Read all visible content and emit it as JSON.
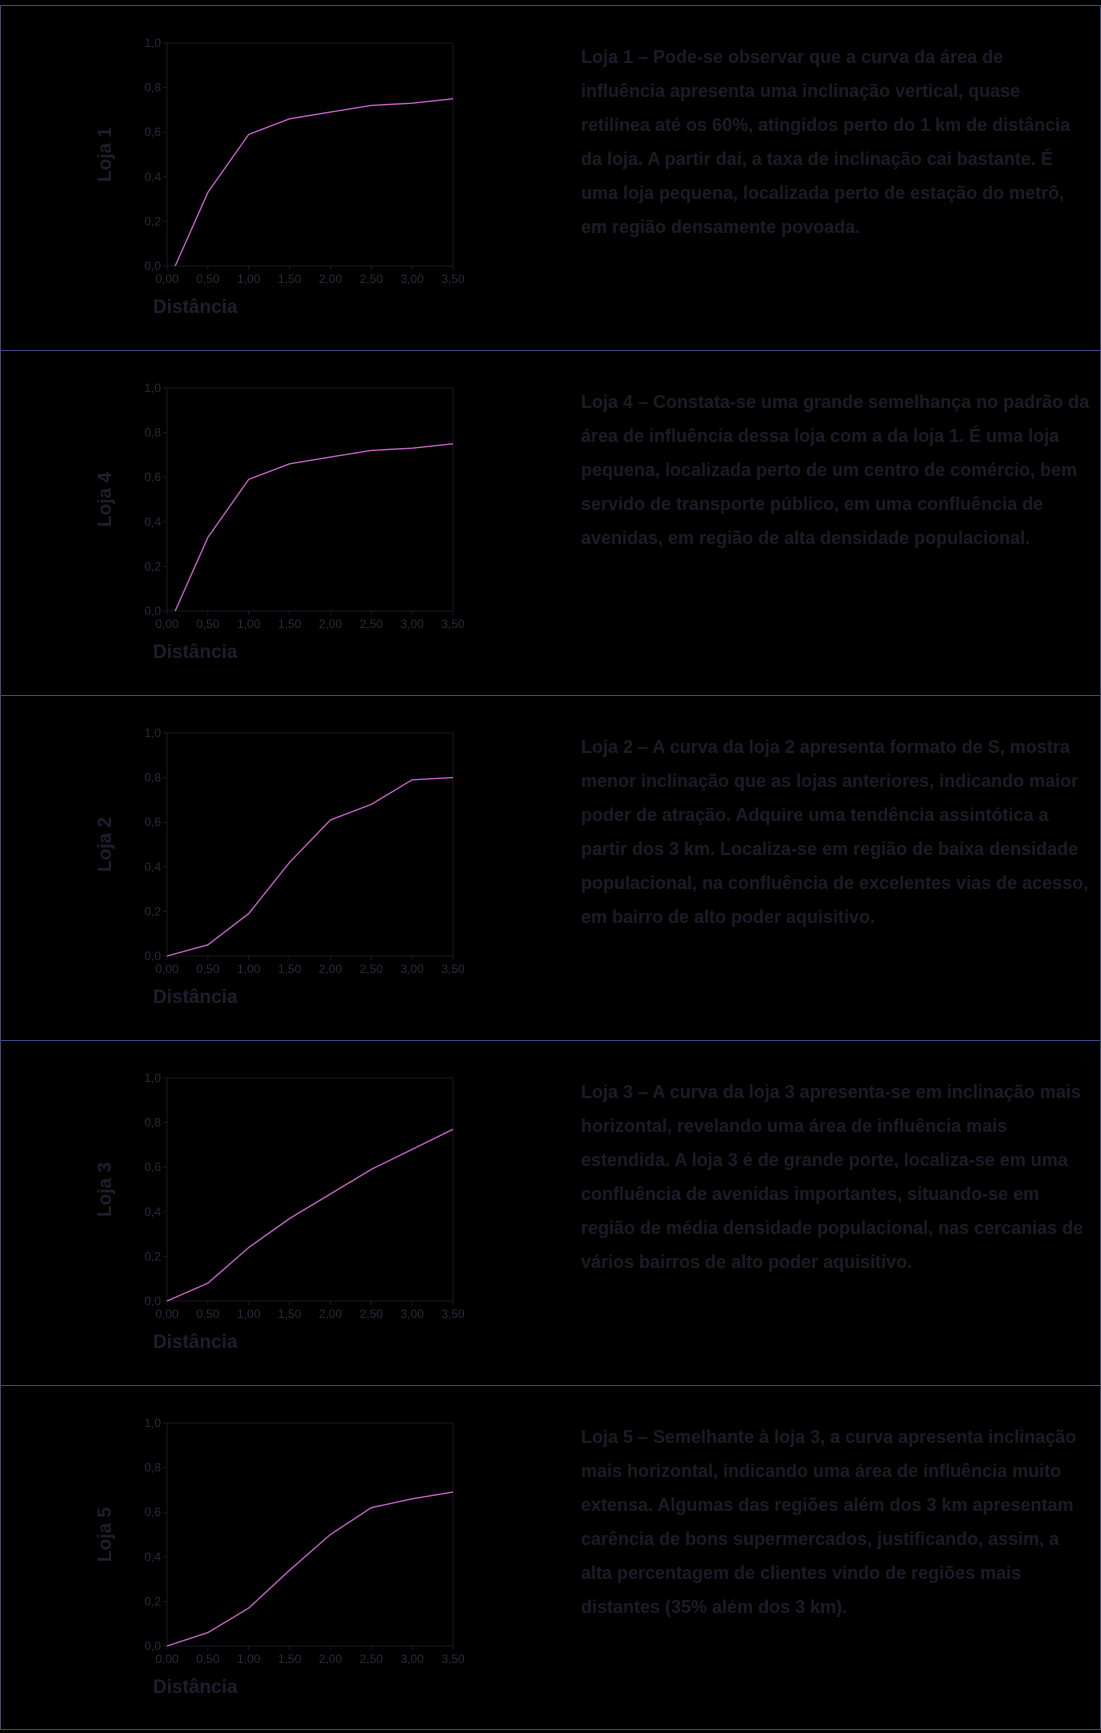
{
  "colors": {
    "background": "#000000",
    "line": "#c060c0",
    "frame": "#1a1a22",
    "panel_border": "#3b4a80",
    "text": "#1c1c28"
  },
  "panels": [
    {
      "ylabel": "Loja 1",
      "xlabel": "Distância",
      "text": "Loja 1 – Pode-se observar que a curva da área de influência apresenta uma inclinação vertical, quase retilínea até os 60%, atingidos perto do 1 km de distância da loja. A partir daí, a taxa de inclinação cai bastante. É uma loja pequena, localizada perto de estação do metrô, em região densamente povoada."
    },
    {
      "ylabel": "Loja 4",
      "xlabel": "Distância",
      "text": "Loja 4 – Constata-se uma grande semelhança no padrão da área de influência dessa loja com a da loja 1. É uma loja pequena, localizada perto de um centro de comércio, bem servido de transporte público, em uma confluência de avenidas, em região de alta densidade populacional."
    },
    {
      "ylabel": "Loja 2",
      "xlabel": "Distância",
      "text": "Loja 2 – A curva da loja 2 apresenta formato de S, mostra menor inclinação que as lojas anteriores, indicando maior poder de atração. Adquire uma tendência assintótica a partir dos 3 km. Localiza-se em região de baixa densidade populacional, na confluência de excelentes vias de acesso, em bairro de alto poder aquisitivo."
    },
    {
      "ylabel": "Loja 3",
      "xlabel": "Distância",
      "text": "Loja 3 – A curva da loja 3 apresenta-se em inclinação mais horizontal, revelando uma área de influência mais estendida. A loja 3 é de grande porte, localiza-se em uma confluência de avenidas importantes, situando-se em região de média densidade populacional, nas cercanias de vários bairros de alto poder aquisitivo."
    },
    {
      "ylabel": "Loja 5",
      "xlabel": "Distância",
      "text": "Loja 5 – Semelhante à loja 3, a curva apresenta inclinação mais horizontal, indicando uma área de influência muito extensa. Algumas das regiões além dos 3 km apresentam carência de bons supermercados, justificando, assim, a alta percentagem de clientes vindo de regiões mais distantes (35% além dos 3 km)."
    }
  ],
  "chart_data": [
    {
      "type": "line",
      "xlabel": "Distância",
      "ylabel": "Loja 1",
      "xlim": [
        0,
        3.5
      ],
      "ylim": [
        0,
        1
      ],
      "xticks": [
        "0,00",
        "0,50",
        "1,00",
        "1,50",
        "2,00",
        "2,50",
        "3,00",
        "3,50"
      ],
      "yticks": [
        "0,0",
        "0,2",
        "0,4",
        "0,6",
        "0,8",
        "1,0"
      ],
      "x": [
        0.1,
        0.5,
        1.0,
        1.5,
        2.0,
        2.5,
        3.0,
        3.5
      ],
      "y": [
        0.0,
        0.33,
        0.59,
        0.66,
        0.69,
        0.72,
        0.73,
        0.75
      ]
    },
    {
      "type": "line",
      "xlabel": "Distância",
      "ylabel": "Loja 4",
      "xlim": [
        0,
        3.5
      ],
      "ylim": [
        0,
        1
      ],
      "xticks": [
        "0,00",
        "0,50",
        "1,00",
        "1,50",
        "2,00",
        "2,50",
        "3,00",
        "3,50"
      ],
      "yticks": [
        "0,0",
        "0,2",
        "0,4",
        "0,6",
        "0,8",
        "1,0"
      ],
      "x": [
        0.1,
        0.5,
        1.0,
        1.5,
        2.0,
        2.5,
        3.0,
        3.5
      ],
      "y": [
        0.0,
        0.33,
        0.59,
        0.66,
        0.69,
        0.72,
        0.73,
        0.75
      ]
    },
    {
      "type": "line",
      "xlabel": "Distância",
      "ylabel": "Loja 2",
      "xlim": [
        0,
        3.5
      ],
      "ylim": [
        0,
        1
      ],
      "xticks": [
        "0,00",
        "0,50",
        "1,00",
        "1,50",
        "2,00",
        "2,50",
        "3,00",
        "3,50"
      ],
      "yticks": [
        "0,0",
        "0,2",
        "0,4",
        "0,6",
        "0,8",
        "1,0"
      ],
      "x": [
        0.0,
        0.5,
        1.0,
        1.5,
        2.0,
        2.5,
        3.0,
        3.5
      ],
      "y": [
        0.0,
        0.05,
        0.19,
        0.42,
        0.61,
        0.68,
        0.79,
        0.8
      ]
    },
    {
      "type": "line",
      "xlabel": "Distância",
      "ylabel": "Loja 3",
      "xlim": [
        0,
        3.5
      ],
      "ylim": [
        0,
        1
      ],
      "xticks": [
        "0,00",
        "0,50",
        "1,00",
        "1,50",
        "2,00",
        "2,50",
        "3,00",
        "3,50"
      ],
      "yticks": [
        "0,0",
        "0,2",
        "0,4",
        "0,6",
        "0,8",
        "1,0"
      ],
      "x": [
        0.0,
        0.5,
        1.0,
        1.5,
        2.0,
        2.5,
        3.0,
        3.5
      ],
      "y": [
        0.0,
        0.08,
        0.24,
        0.37,
        0.48,
        0.59,
        0.68,
        0.77
      ]
    },
    {
      "type": "line",
      "xlabel": "Distância",
      "ylabel": "Loja 5",
      "xlim": [
        0,
        3.5
      ],
      "ylim": [
        0,
        1
      ],
      "xticks": [
        "0,00",
        "0,50",
        "1,00",
        "1,50",
        "2,00",
        "2,50",
        "3,00",
        "3,50"
      ],
      "yticks": [
        "0,0",
        "0,2",
        "0,4",
        "0,6",
        "0,8",
        "1,0"
      ],
      "x": [
        0.0,
        0.5,
        1.0,
        1.5,
        2.0,
        2.5,
        3.0,
        3.5
      ],
      "y": [
        0.0,
        0.06,
        0.17,
        0.34,
        0.5,
        0.62,
        0.66,
        0.69
      ]
    }
  ]
}
